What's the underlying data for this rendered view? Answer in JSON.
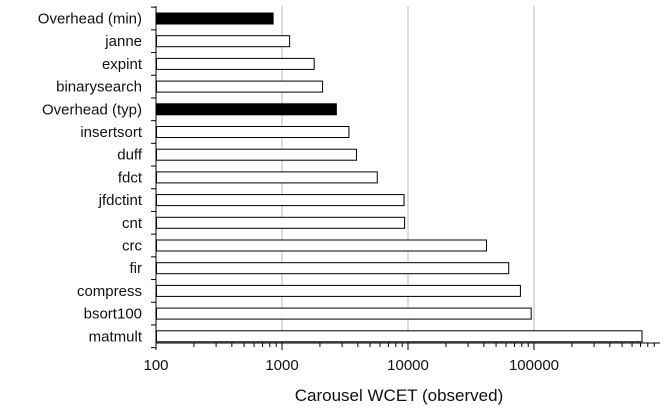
{
  "chart_data": {
    "type": "bar",
    "orientation": "horizontal",
    "xscale": "log",
    "xlim": [
      100,
      1000000
    ],
    "xlabel": "Carousel WCET (observed)",
    "ylabel": "",
    "title": "",
    "grid": "vertical",
    "x_ticks": [
      "100",
      "1000",
      "10000",
      "100000"
    ],
    "categories": [
      "Overhead (min)",
      "janne",
      "expint",
      "binarysearch",
      "Overhead (typ)",
      "insertsort",
      "duff",
      "fdct",
      "jfdctint",
      "cnt",
      "crc",
      "fir",
      "compress",
      "bsort100",
      "matmult"
    ],
    "values": [
      850,
      1150,
      1800,
      2100,
      2700,
      3400,
      3900,
      5700,
      9300,
      9400,
      42000,
      63000,
      78000,
      95000,
      720000
    ],
    "highlighted": [
      "Overhead (min)",
      "Overhead (typ)"
    ],
    "colors": {
      "bar_fill": "#ffffff",
      "bar_stroke": "#000000",
      "highlight_fill": "#000000",
      "grid": "#b8b8b8",
      "axis": "#000000"
    }
  }
}
